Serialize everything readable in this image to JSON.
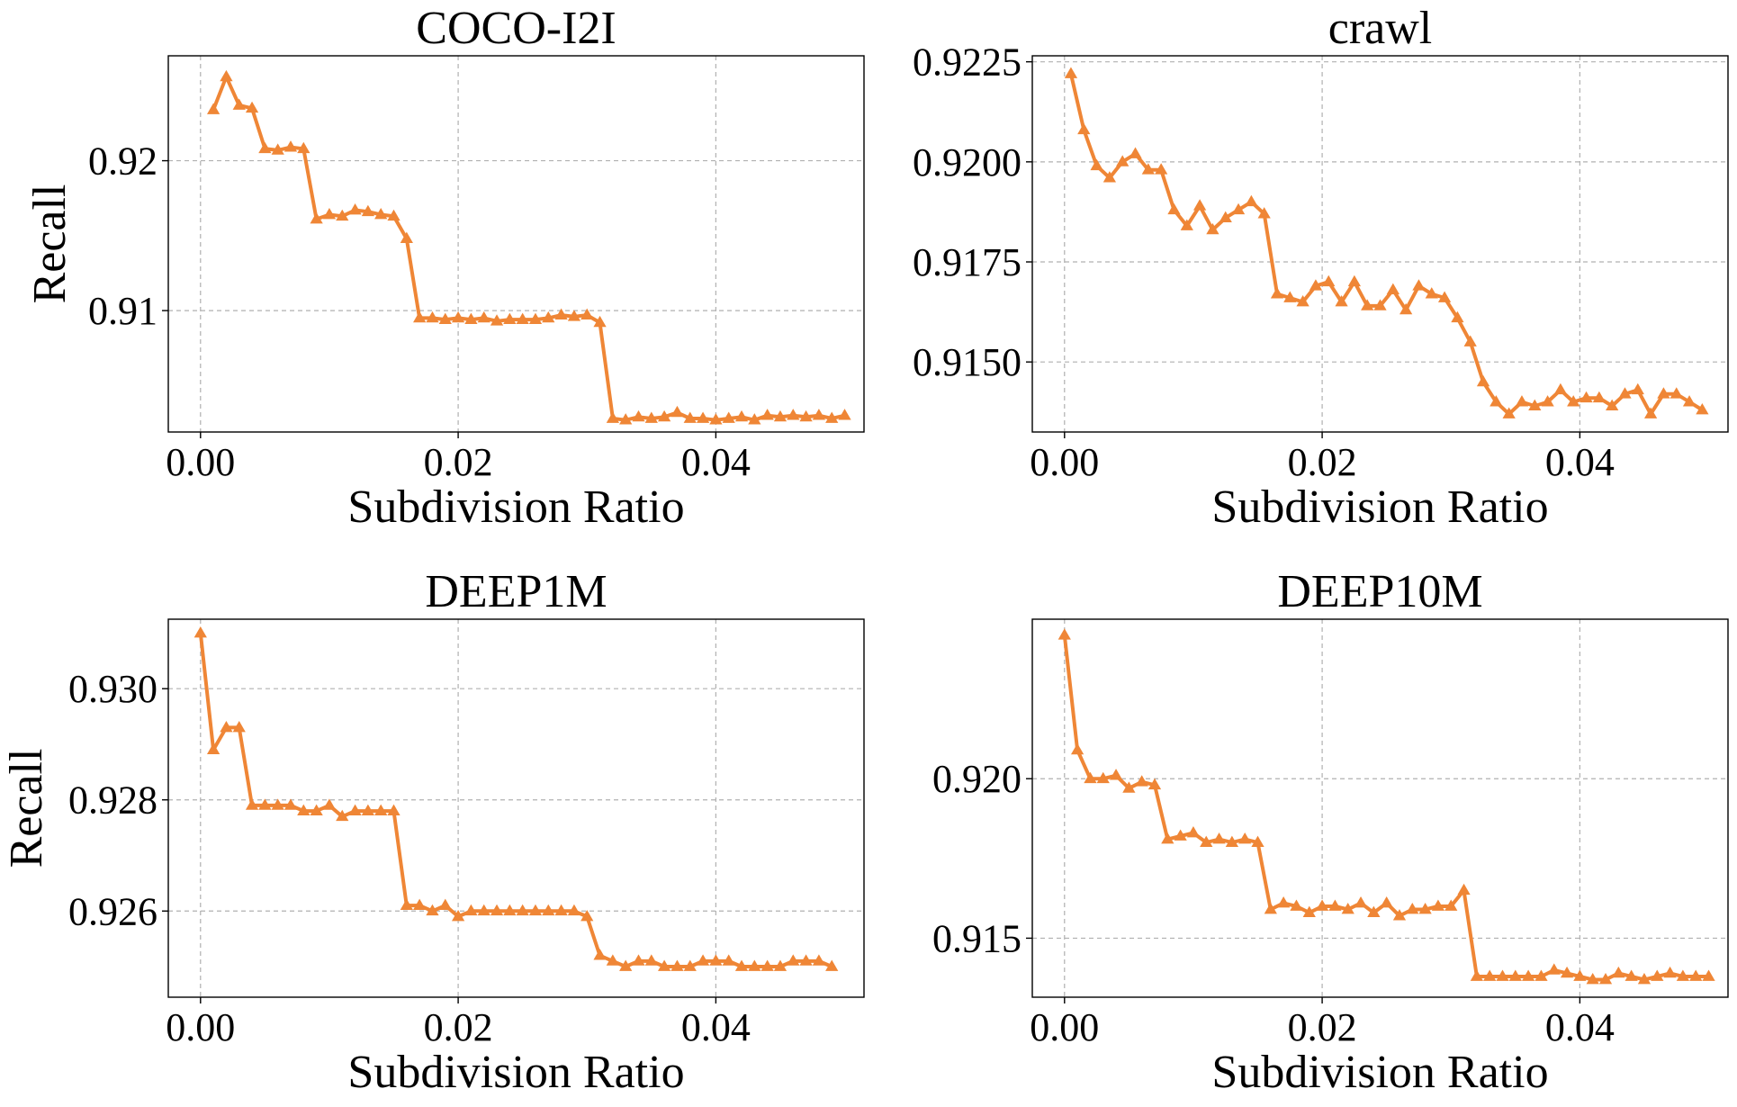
{
  "figure": {
    "background": "#ffffff",
    "series_color": "#ef8636",
    "marker": "triangle"
  },
  "chart_data": [
    {
      "type": "line",
      "title": "COCO-I2I",
      "xlabel": "Subdivision Ratio",
      "ylabel": "Recall",
      "xlim": [
        -0.0025,
        0.0515
      ],
      "ylim": [
        0.9019,
        0.927
      ],
      "xticks": [
        0.0,
        0.02,
        0.04
      ],
      "xtick_labels": [
        "0.00",
        "0.02",
        "0.04"
      ],
      "yticks": [
        0.91,
        0.92
      ],
      "ytick_labels": [
        "0.91",
        "0.92"
      ],
      "grid": true,
      "series": [
        {
          "color": "#ef8636",
          "x": [
            0.001,
            0.002,
            0.003,
            0.004,
            0.005,
            0.006,
            0.007,
            0.008,
            0.009,
            0.01,
            0.011,
            0.012,
            0.013,
            0.014,
            0.015,
            0.016,
            0.017,
            0.018,
            0.019,
            0.02,
            0.021,
            0.022,
            0.023,
            0.024,
            0.025,
            0.026,
            0.027,
            0.028,
            0.029,
            0.03,
            0.031,
            0.032,
            0.033,
            0.034,
            0.035,
            0.036,
            0.037,
            0.038,
            0.039,
            0.04,
            0.041,
            0.042,
            0.043,
            0.044,
            0.045,
            0.046,
            0.047,
            0.048,
            0.049,
            0.05
          ],
          "y": [
            0.9234,
            0.9256,
            0.9237,
            0.9235,
            0.9208,
            0.9207,
            0.9209,
            0.9208,
            0.9161,
            0.9164,
            0.9163,
            0.9167,
            0.9166,
            0.9164,
            0.9163,
            0.9148,
            0.9095,
            0.9095,
            0.9094,
            0.9095,
            0.9094,
            0.9095,
            0.9093,
            0.9094,
            0.9094,
            0.9094,
            0.9095,
            0.9097,
            0.9096,
            0.9097,
            0.9092,
            0.9028,
            0.9027,
            0.9029,
            0.9028,
            0.9029,
            0.9032,
            0.9028,
            0.9028,
            0.9027,
            0.9028,
            0.9029,
            0.9027,
            0.903,
            0.9029,
            0.903,
            0.9029,
            0.903,
            0.9028,
            0.903
          ]
        }
      ]
    },
    {
      "type": "line",
      "title": "crawl",
      "xlabel": "Subdivision Ratio",
      "ylabel": "",
      "xlim": [
        -0.0025,
        0.0515
      ],
      "ylim": [
        0.91325,
        0.92265
      ],
      "xticks": [
        0.0,
        0.02,
        0.04
      ],
      "xtick_labels": [
        "0.00",
        "0.02",
        "0.04"
      ],
      "yticks": [
        0.915,
        0.9175,
        0.92,
        0.9225
      ],
      "ytick_labels": [
        "0.9150",
        "0.9175",
        "0.9200",
        "0.9225"
      ],
      "grid": true,
      "series": [
        {
          "color": "#ef8636",
          "x": [
            0.0005,
            0.0015,
            0.0025,
            0.0035,
            0.0045,
            0.0055,
            0.0065,
            0.0075,
            0.0085,
            0.0095,
            0.0105,
            0.0115,
            0.0125,
            0.0135,
            0.0145,
            0.0155,
            0.0165,
            0.0175,
            0.0185,
            0.0195,
            0.0205,
            0.0215,
            0.0225,
            0.0235,
            0.0245,
            0.0255,
            0.0265,
            0.0275,
            0.0285,
            0.0295,
            0.0305,
            0.0315,
            0.0325,
            0.0335,
            0.0345,
            0.0355,
            0.0365,
            0.0375,
            0.0385,
            0.0395,
            0.0405,
            0.0415,
            0.0425,
            0.0435,
            0.0445,
            0.0455,
            0.0465,
            0.0475,
            0.0485,
            0.0495
          ],
          "y": [
            0.9222,
            0.9208,
            0.9199,
            0.9196,
            0.92,
            0.9202,
            0.9198,
            0.9198,
            0.9188,
            0.9184,
            0.9189,
            0.9183,
            0.9186,
            0.9188,
            0.919,
            0.9187,
            0.9167,
            0.9166,
            0.9165,
            0.9169,
            0.917,
            0.9165,
            0.917,
            0.9164,
            0.9164,
            0.9168,
            0.9163,
            0.9169,
            0.9167,
            0.9166,
            0.9161,
            0.9155,
            0.9145,
            0.914,
            0.9137,
            0.914,
            0.9139,
            0.914,
            0.9143,
            0.914,
            0.9141,
            0.9141,
            0.9139,
            0.9142,
            0.9143,
            0.9137,
            0.9142,
            0.9142,
            0.914,
            0.9138
          ]
        }
      ]
    },
    {
      "type": "line",
      "title": "DEEP1M",
      "xlabel": "Subdivision Ratio",
      "ylabel": "Recall",
      "xlim": [
        -0.0025,
        0.0515
      ],
      "ylim": [
        0.92445,
        0.93125
      ],
      "xticks": [
        0.0,
        0.02,
        0.04
      ],
      "xtick_labels": [
        "0.00",
        "0.02",
        "0.04"
      ],
      "yticks": [
        0.926,
        0.928,
        0.93
      ],
      "ytick_labels": [
        "0.926",
        "0.928",
        "0.930"
      ],
      "grid": true,
      "series": [
        {
          "color": "#ef8636",
          "x": [
            0.0,
            0.001,
            0.002,
            0.003,
            0.004,
            0.005,
            0.006,
            0.007,
            0.008,
            0.009,
            0.01,
            0.011,
            0.012,
            0.013,
            0.014,
            0.015,
            0.016,
            0.017,
            0.018,
            0.019,
            0.02,
            0.021,
            0.022,
            0.023,
            0.024,
            0.025,
            0.026,
            0.027,
            0.028,
            0.029,
            0.03,
            0.031,
            0.032,
            0.033,
            0.034,
            0.035,
            0.036,
            0.037,
            0.038,
            0.039,
            0.04,
            0.041,
            0.042,
            0.043,
            0.044,
            0.045,
            0.046,
            0.047,
            0.048,
            0.049
          ],
          "y": [
            0.931,
            0.9289,
            0.9293,
            0.9293,
            0.9279,
            0.9279,
            0.9279,
            0.9279,
            0.9278,
            0.9278,
            0.9279,
            0.9277,
            0.9278,
            0.9278,
            0.9278,
            0.9278,
            0.9261,
            0.9261,
            0.926,
            0.9261,
            0.9259,
            0.926,
            0.926,
            0.926,
            0.926,
            0.926,
            0.926,
            0.926,
            0.926,
            0.926,
            0.9259,
            0.9252,
            0.9251,
            0.925,
            0.9251,
            0.9251,
            0.925,
            0.925,
            0.925,
            0.9251,
            0.9251,
            0.9251,
            0.925,
            0.925,
            0.925,
            0.925,
            0.9251,
            0.9251,
            0.9251,
            0.925
          ]
        }
      ]
    },
    {
      "type": "line",
      "title": "DEEP10M",
      "xlabel": "Subdivision Ratio",
      "ylabel": "",
      "xlim": [
        -0.0025,
        0.0515
      ],
      "ylim": [
        0.91315,
        0.925
      ],
      "xticks": [
        0.0,
        0.02,
        0.04
      ],
      "xtick_labels": [
        "0.00",
        "0.02",
        "0.04"
      ],
      "yticks": [
        0.915,
        0.92
      ],
      "ytick_labels": [
        "0.915",
        "0.920"
      ],
      "grid": true,
      "series": [
        {
          "color": "#ef8636",
          "x": [
            0.0,
            0.001,
            0.002,
            0.003,
            0.004,
            0.005,
            0.006,
            0.007,
            0.008,
            0.009,
            0.01,
            0.011,
            0.012,
            0.013,
            0.014,
            0.015,
            0.016,
            0.017,
            0.018,
            0.019,
            0.02,
            0.021,
            0.022,
            0.023,
            0.024,
            0.025,
            0.026,
            0.027,
            0.028,
            0.029,
            0.03,
            0.031,
            0.032,
            0.033,
            0.034,
            0.035,
            0.036,
            0.037,
            0.038,
            0.039,
            0.04,
            0.041,
            0.042,
            0.043,
            0.044,
            0.045,
            0.046,
            0.047,
            0.048,
            0.049,
            0.05
          ],
          "y": [
            0.9245,
            0.9209,
            0.92,
            0.92,
            0.9201,
            0.9197,
            0.9199,
            0.9198,
            0.9181,
            0.9182,
            0.9183,
            0.918,
            0.9181,
            0.918,
            0.9181,
            0.918,
            0.9159,
            0.9161,
            0.916,
            0.9158,
            0.916,
            0.916,
            0.9159,
            0.9161,
            0.9158,
            0.9161,
            0.9157,
            0.9159,
            0.9159,
            0.916,
            0.916,
            0.9165,
            0.9138,
            0.9138,
            0.9138,
            0.9138,
            0.9138,
            0.9138,
            0.914,
            0.9139,
            0.9138,
            0.9137,
            0.9137,
            0.9139,
            0.9138,
            0.9137,
            0.9138,
            0.9139,
            0.9138,
            0.9138,
            0.9138
          ]
        }
      ]
    }
  ]
}
